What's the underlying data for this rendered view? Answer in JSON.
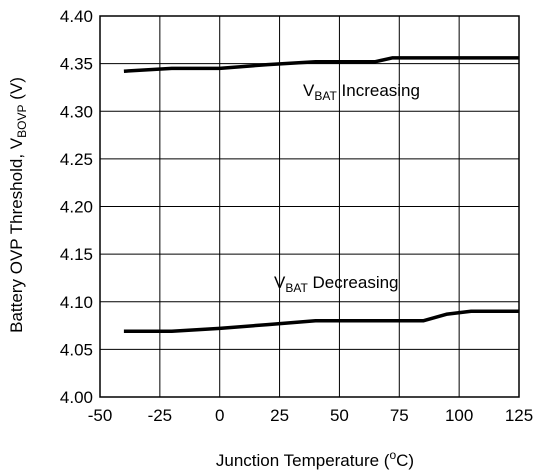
{
  "chart_data": {
    "type": "line",
    "xlabel": {
      "main": "Junction Temperature (",
      "sup": "o",
      "tail": "C)"
    },
    "ylabel": {
      "main": "Battery OVP Threshold, V",
      "sub": "BOVP",
      "tail": " (V)"
    },
    "xlim": [
      -50,
      125
    ],
    "ylim": [
      4.0,
      4.4
    ],
    "xticks": [
      "-50",
      "-25",
      "0",
      "25",
      "50",
      "75",
      "100",
      "125"
    ],
    "yticks": [
      "4.00",
      "4.05",
      "4.10",
      "4.15",
      "4.20",
      "4.25",
      "4.30",
      "4.35",
      "4.40"
    ],
    "grid": true,
    "series": [
      {
        "name": "VBAT Increasing",
        "x": [
          -40,
          -20,
          0,
          20,
          40,
          65,
          72,
          90,
          110,
          125
        ],
        "y": [
          4.342,
          4.345,
          4.345,
          4.349,
          4.352,
          4.352,
          4.356,
          4.356,
          4.356,
          4.356
        ]
      },
      {
        "name": "VBAT Decreasing",
        "x": [
          -40,
          -20,
          0,
          20,
          40,
          60,
          85,
          95,
          105,
          125
        ],
        "y": [
          4.069,
          4.069,
          4.072,
          4.076,
          4.08,
          4.08,
          4.08,
          4.087,
          4.09,
          4.09
        ]
      }
    ],
    "annotations": [
      {
        "base": "V",
        "sub": "BAT",
        "text": " Increasing"
      },
      {
        "base": "V",
        "sub": "BAT",
        "text": " Decreasing"
      }
    ]
  }
}
